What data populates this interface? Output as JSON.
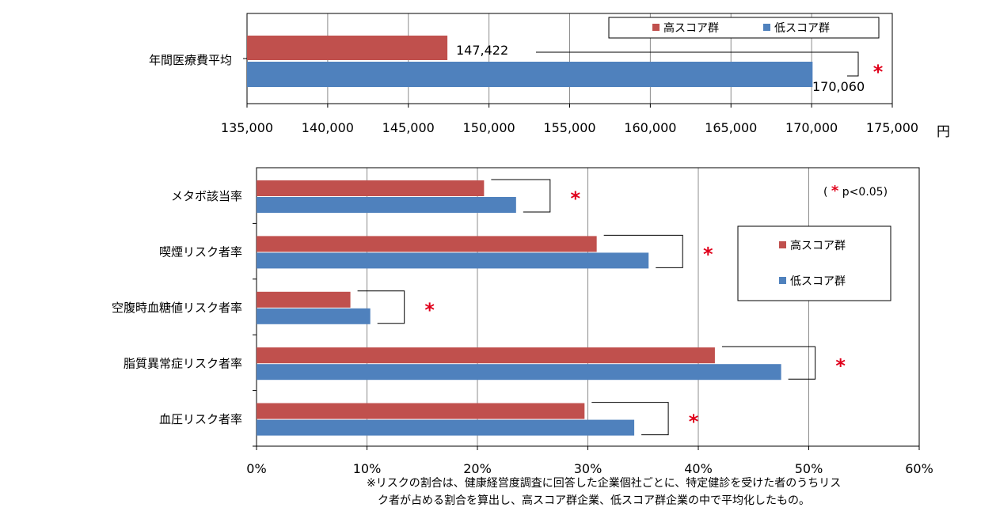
{
  "colors": {
    "high": "#C0504D",
    "low": "#4F81BD",
    "sig": "#E0001B",
    "grid": "#8c8c8c",
    "frame": "#000000"
  },
  "legend": {
    "high": "高スコア群",
    "low": "低スコア群"
  },
  "chart_data": [
    {
      "type": "bar",
      "orientation": "horizontal",
      "categories": [
        "年間医療費平均"
      ],
      "series": [
        {
          "name": "高スコア群",
          "values": [
            147422
          ]
        },
        {
          "name": "低スコア群",
          "values": [
            170060
          ]
        }
      ],
      "value_labels": [
        "147,422",
        "170,060"
      ],
      "xlim": [
        135000,
        175000
      ],
      "xticks": [
        "135,000",
        "140,000",
        "145,000",
        "150,000",
        "155,000",
        "160,000",
        "165,000",
        "170,000",
        "175,000"
      ],
      "unit": "円",
      "grid": "vertical",
      "legend_position": "top-right",
      "significance": [
        "*"
      ]
    },
    {
      "type": "bar",
      "orientation": "horizontal",
      "categories": [
        "メタボ該当率",
        "喫煙リスク者率",
        "空腹時血糖値リスク者率",
        "脂質異常症リスク者率",
        "血圧リスク者率"
      ],
      "series": [
        {
          "name": "高スコア群",
          "values": [
            20.6,
            30.8,
            8.5,
            41.5,
            29.7
          ]
        },
        {
          "name": "低スコア群",
          "values": [
            23.5,
            35.5,
            10.3,
            47.5,
            34.2
          ]
        }
      ],
      "xlim": [
        0,
        60
      ],
      "xticks": [
        "0%",
        "10%",
        "20%",
        "30%",
        "40%",
        "50%",
        "60%"
      ],
      "grid": "vertical",
      "legend_position": "right",
      "significance": [
        "*",
        "*",
        "*",
        "*",
        "*"
      ],
      "annotation": "( * p<0.05)"
    }
  ],
  "footnote": {
    "line1": "※リスクの割合は、健康経営度調査に回答した企業個社ごとに、特定健診を受けた者のうちリス",
    "line2": "ク者が占める割合を算出し、高スコア群企業、低スコア群企業の中で平均化したもの。"
  }
}
